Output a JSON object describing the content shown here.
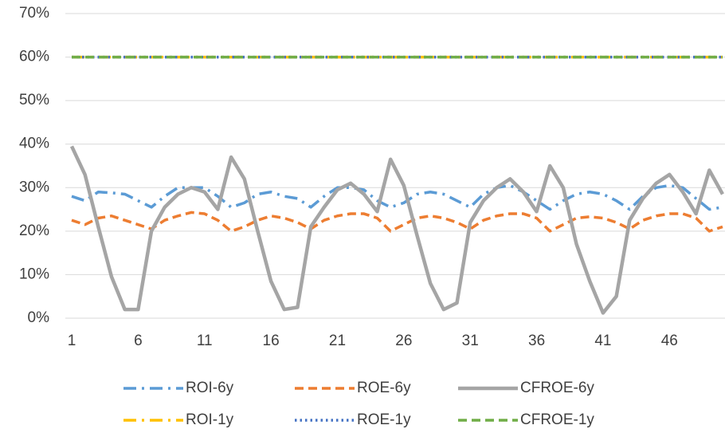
{
  "chart_data": {
    "type": "line",
    "categories": [
      "1",
      null,
      null,
      null,
      null,
      "6",
      null,
      null,
      null,
      null,
      "11",
      null,
      null,
      null,
      null,
      "16",
      null,
      null,
      null,
      null,
      "21",
      null,
      null,
      null,
      null,
      "26",
      null,
      null,
      null,
      null,
      "31",
      null,
      null,
      null,
      null,
      "36",
      null,
      null,
      null,
      null,
      "41",
      null,
      null,
      null,
      null,
      "46",
      null,
      null,
      null,
      null
    ],
    "series": [
      {
        "name": "ROI-6y",
        "color": "#5B9BD5",
        "dash": "dashdot",
        "values": [
          28,
          27,
          29,
          28.8,
          28.5,
          27,
          25.5,
          28,
          30,
          30,
          30,
          28,
          25.5,
          26.5,
          28.5,
          29,
          28,
          27.5,
          25.5,
          28,
          30,
          30,
          29.5,
          27,
          25.5,
          26.5,
          28.5,
          29,
          28.5,
          27,
          25.5,
          28.5,
          30,
          30.5,
          29,
          27,
          25,
          27,
          28.5,
          29,
          28.5,
          27,
          25,
          28,
          30,
          30.5,
          30,
          27.5,
          25,
          25.5
        ]
      },
      {
        "name": "ROE-6y",
        "color": "#ED7D31",
        "dash": "dash",
        "values": [
          22.5,
          21.5,
          23,
          23.5,
          22.5,
          21.5,
          20.5,
          22.5,
          23.5,
          24.3,
          24,
          22.5,
          20,
          21,
          22.5,
          23.5,
          23,
          22,
          20.5,
          22.5,
          23.5,
          24,
          24,
          23,
          20,
          21.5,
          23,
          23.5,
          23,
          22,
          20.5,
          22.5,
          23.5,
          24,
          24,
          23,
          20,
          21.5,
          23,
          23.3,
          23,
          22,
          20.5,
          22.5,
          23.5,
          24,
          24,
          23,
          20,
          21
        ]
      },
      {
        "name": "CFROE-6y",
        "color": "#A5A5A5",
        "dash": "solid",
        "values": [
          39.5,
          33,
          21,
          9.5,
          2,
          2,
          20,
          25.5,
          28.5,
          30,
          29,
          25,
          37,
          32,
          20,
          8.5,
          2,
          2.5,
          21,
          25.5,
          29.5,
          31,
          28.5,
          24.5,
          36.5,
          30.5,
          19,
          8,
          2,
          3.5,
          22,
          27,
          30,
          32,
          29,
          24.5,
          35,
          30,
          17,
          8.5,
          1.2,
          5,
          22.5,
          27.5,
          31,
          33,
          29,
          24,
          34,
          28.5
        ]
      },
      {
        "name": "ROI-1y",
        "color": "#FFC000",
        "dash": "dashdot",
        "values": [
          60,
          60,
          60,
          60,
          60,
          60,
          60,
          60,
          60,
          60,
          60,
          60,
          60,
          60,
          60,
          60,
          60,
          60,
          60,
          60,
          60,
          60,
          60,
          60,
          60,
          60,
          60,
          60,
          60,
          60,
          60,
          60,
          60,
          60,
          60,
          60,
          60,
          60,
          60,
          60,
          60,
          60,
          60,
          60,
          60,
          60,
          60,
          60,
          60,
          60
        ]
      },
      {
        "name": "ROE-1y",
        "color": "#4472C4",
        "dash": "dot",
        "values": [
          60,
          60,
          60,
          60,
          60,
          60,
          60,
          60,
          60,
          60,
          60,
          60,
          60,
          60,
          60,
          60,
          60,
          60,
          60,
          60,
          60,
          60,
          60,
          60,
          60,
          60,
          60,
          60,
          60,
          60,
          60,
          60,
          60,
          60,
          60,
          60,
          60,
          60,
          60,
          60,
          60,
          60,
          60,
          60,
          60,
          60,
          60,
          60,
          60,
          60
        ]
      },
      {
        "name": "CFROE-1y",
        "color": "#70AD47",
        "dash": "dash",
        "values": [
          60,
          60,
          60,
          60,
          60,
          60,
          60,
          60,
          60,
          60,
          60,
          60,
          60,
          60,
          60,
          60,
          60,
          60,
          60,
          60,
          60,
          60,
          60,
          60,
          60,
          60,
          60,
          60,
          60,
          60,
          60,
          60,
          60,
          60,
          60,
          60,
          60,
          60,
          60,
          60,
          60,
          60,
          60,
          60,
          60,
          60,
          60,
          60,
          60,
          60
        ]
      }
    ],
    "ylim": [
      0,
      70
    ],
    "yticks": [
      {
        "value": 0,
        "label": "0%"
      },
      {
        "value": 10,
        "label": "10%"
      },
      {
        "value": 20,
        "label": "20%"
      },
      {
        "value": 30,
        "label": "30%"
      },
      {
        "value": 40,
        "label": "40%"
      },
      {
        "value": 50,
        "label": "50%"
      },
      {
        "value": 60,
        "label": "60%"
      },
      {
        "value": 70,
        "label": "70%"
      }
    ],
    "grid": true,
    "legend": "bottom"
  }
}
